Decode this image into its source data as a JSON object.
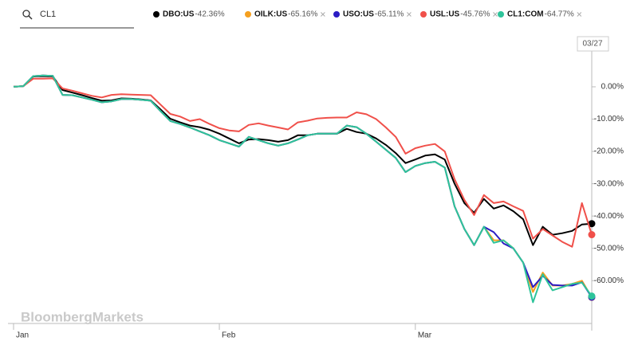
{
  "search": {
    "query": "CL1"
  },
  "chart_data": {
    "type": "line",
    "watermark": "BloombergMarkets",
    "date_label": "03/27",
    "categories": [
      "Jan",
      null,
      null,
      null,
      null,
      null,
      null,
      null,
      null,
      null,
      null,
      null,
      null,
      null,
      null,
      null,
      null,
      null,
      null,
      null,
      null,
      "Feb",
      null,
      null,
      null,
      null,
      null,
      null,
      null,
      null,
      null,
      null,
      null,
      null,
      null,
      null,
      null,
      null,
      null,
      null,
      null,
      "Mar",
      null,
      null,
      null,
      null,
      null,
      null,
      null,
      null,
      null,
      null,
      null,
      null,
      null,
      null,
      null,
      null,
      null,
      null
    ],
    "ylim": [
      -73,
      17
    ],
    "yticks": [
      {
        "value": 0,
        "label": "0.00%"
      },
      {
        "value": -10,
        "label": "-10.00%"
      },
      {
        "value": -20,
        "label": "-20.00%"
      },
      {
        "value": -30,
        "label": "-30.00%"
      },
      {
        "value": -40,
        "label": "-40.00%"
      },
      {
        "value": -50,
        "label": "-50.00%"
      },
      {
        "value": -60,
        "label": "-60.00%"
      }
    ],
    "grid": false,
    "series": [
      {
        "name": "DBO:US",
        "last_label": "-42.36%",
        "color": "#000000",
        "values": [
          0,
          0.2,
          3.2,
          3.3,
          3.2,
          -1,
          -1.8,
          -2.6,
          -3.5,
          -4.3,
          -4.2,
          -3.6,
          -3.7,
          -3.9,
          -4.2,
          -7,
          -9.9,
          -11,
          -12,
          -12.5,
          -13.3,
          -14.5,
          -16,
          -17.5,
          -16.3,
          -16.2,
          -16.5,
          -17,
          -16.5,
          -15,
          -15,
          -14.5,
          -14.5,
          -14.5,
          -13,
          -14,
          -14.5,
          -16,
          -18,
          -20.5,
          -23.6,
          -22.5,
          -21.3,
          -20.9,
          -22.5,
          -30,
          -36,
          -39,
          -34.7,
          -37.7,
          -36.7,
          -38.5,
          -41,
          -49,
          -43.3,
          -45.8,
          -45.3,
          -44.6,
          -42.6,
          -42.36
        ]
      },
      {
        "name": "OILK:US",
        "last_label": "-65.16%",
        "color": "#f5a020",
        "values": [
          0,
          0.2,
          3.3,
          3.5,
          3.4,
          -2.5,
          -2.6,
          -3.3,
          -4,
          -4.8,
          -4.5,
          -3.8,
          -3.8,
          -4,
          -4.3,
          -7.5,
          -10.6,
          -11.5,
          -12.6,
          -13.8,
          -15,
          -16.5,
          -17.5,
          -18.5,
          -15.5,
          -16.5,
          -17.5,
          -18.2,
          -17.5,
          -16.3,
          -15,
          -14.5,
          -14.5,
          -14.5,
          -12,
          -12.5,
          -14.5,
          -17,
          -19.5,
          -22,
          -26.4,
          -24.5,
          -23.6,
          -23.2,
          -25,
          -37,
          -44,
          -49,
          -43.3,
          -47.5,
          -47.5,
          -50,
          -54.4,
          -63.5,
          -57.5,
          -61.5,
          -61.5,
          -61,
          -60,
          -65.16
        ]
      },
      {
        "name": "USO:US",
        "last_label": "-65.11%",
        "color": "#2b1cc4",
        "values": [
          0,
          0.2,
          3.3,
          3.5,
          3.4,
          -2.5,
          -2.6,
          -3.3,
          -4,
          -4.8,
          -4.5,
          -3.8,
          -3.8,
          -4,
          -4.3,
          -7.5,
          -10.6,
          -11.5,
          -12.6,
          -13.8,
          -15,
          -16.5,
          -17.5,
          -18.5,
          -15.5,
          -16.5,
          -17.5,
          -18.2,
          -17.5,
          -16.3,
          -15,
          -14.5,
          -14.5,
          -14.5,
          -12,
          -12.5,
          -14.5,
          -17,
          -19.5,
          -22,
          -26.4,
          -24.5,
          -23.6,
          -23.2,
          -25,
          -37,
          -44,
          -49,
          -43.3,
          -45,
          -48.5,
          -50,
          -54.4,
          -62,
          -58.5,
          -61.3,
          -61.5,
          -61.5,
          -60.5,
          -65.11
        ]
      },
      {
        "name": "USL:US",
        "last_label": "-45.76%",
        "color": "#f0504a",
        "values": [
          0,
          0.2,
          2.5,
          2.5,
          2.6,
          -0.5,
          -1.2,
          -2,
          -2.8,
          -3.3,
          -2.5,
          -2.3,
          -2.4,
          -2.5,
          -2.6,
          -5.5,
          -8.4,
          -9.2,
          -10.6,
          -10,
          -11.5,
          -12.8,
          -13.5,
          -13.8,
          -11.8,
          -11.3,
          -12,
          -12.6,
          -13.2,
          -11,
          -10.5,
          -9.8,
          -9.6,
          -9.5,
          -9.5,
          -7.9,
          -8.5,
          -10,
          -12.6,
          -15.5,
          -20.7,
          -19,
          -18.2,
          -17.7,
          -20,
          -28.6,
          -35,
          -39.7,
          -33.5,
          -36,
          -35.5,
          -37,
          -38.4,
          -47,
          -44,
          -46,
          -48,
          -49.5,
          -36,
          -45.76
        ]
      },
      {
        "name": "CL1:COM",
        "last_label": "-64.77%",
        "color": "#2ec49a",
        "values": [
          0,
          0.2,
          3.3,
          3.5,
          3.4,
          -2.5,
          -2.6,
          -3.3,
          -4,
          -4.8,
          -4.5,
          -3.8,
          -3.8,
          -4,
          -4.3,
          -7.5,
          -10.6,
          -11.5,
          -12.6,
          -13.8,
          -15,
          -16.5,
          -17.5,
          -18.5,
          -15.5,
          -16.5,
          -17.5,
          -18.2,
          -17.5,
          -16.3,
          -15,
          -14.5,
          -14.5,
          -14.5,
          -12,
          -12.5,
          -14.5,
          -17,
          -19.5,
          -22,
          -26.4,
          -24.5,
          -23.6,
          -23.2,
          -25,
          -37,
          -44,
          -49,
          -43.3,
          -48.3,
          -47.5,
          -50,
          -54.4,
          -66.7,
          -58,
          -63,
          -62,
          -61,
          -60.6,
          -64.77
        ]
      }
    ]
  }
}
